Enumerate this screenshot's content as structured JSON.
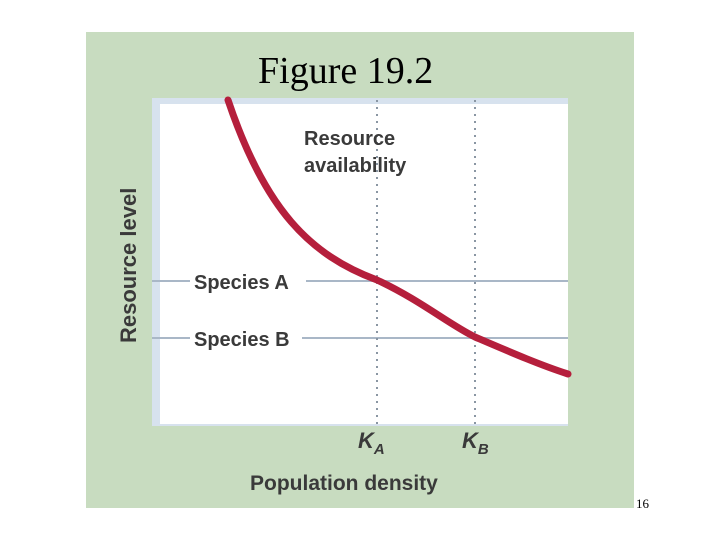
{
  "title": "Figure 19.2",
  "slide_number": "16",
  "axes": {
    "y_label": "Resource level",
    "x_label": "Population density"
  },
  "curve_label_line1": "Resource",
  "curve_label_line2": "availability",
  "species_a": "Species A",
  "species_b": "Species B",
  "ka": {
    "base": "K",
    "sub": "A"
  },
  "kb": {
    "base": "K",
    "sub": "B"
  },
  "colors": {
    "panel": "#c8dcc0",
    "curve": "#b51f3c",
    "plot_bg": "#ffffff",
    "guide_lines": "#9aa8b8"
  }
}
